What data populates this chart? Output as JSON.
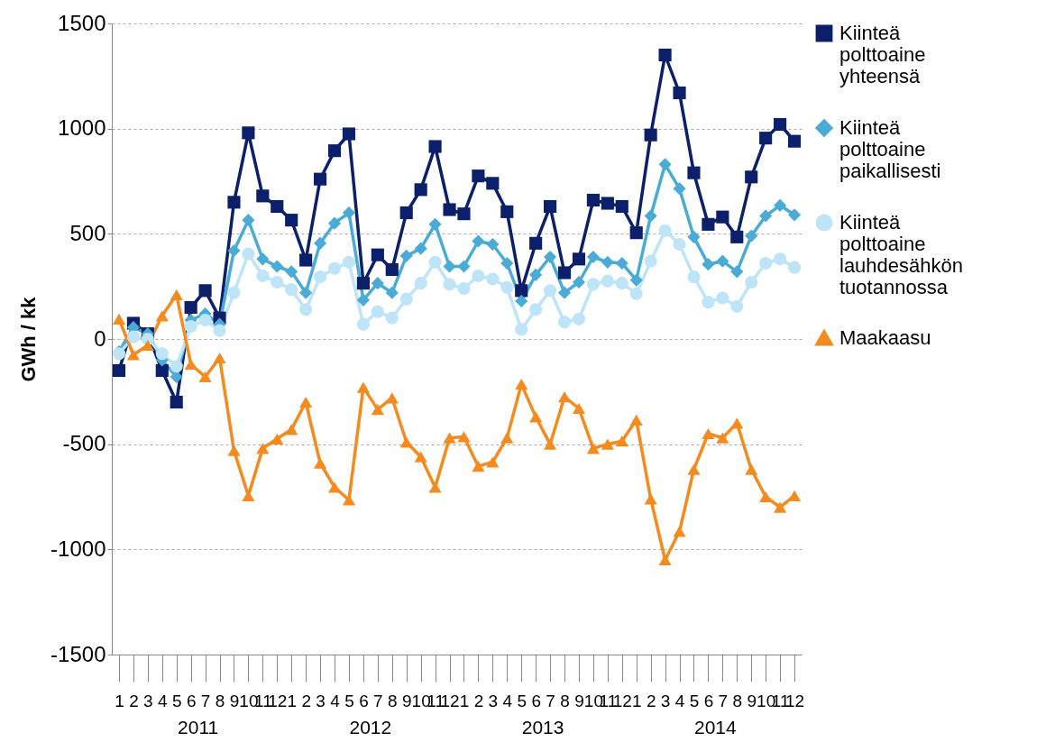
{
  "chart_data": {
    "type": "line",
    "ylabel": "GWh / kk",
    "categories": [
      "1",
      "2",
      "3",
      "4",
      "5",
      "6",
      "7",
      "8",
      "9",
      "10",
      "11",
      "12",
      "1",
      "2",
      "3",
      "4",
      "5",
      "6",
      "7",
      "8",
      "9",
      "10",
      "11",
      "12",
      "1",
      "2",
      "3",
      "4",
      "5",
      "6",
      "7",
      "8",
      "9",
      "10",
      "11",
      "12",
      "1",
      "2",
      "3",
      "4",
      "5",
      "6",
      "7",
      "8",
      "9",
      "10",
      "11",
      "12"
    ],
    "annotations": [
      "2011",
      "2012",
      "2013",
      "2014"
    ],
    "series": [
      {
        "name": "Kiinteä polttoaine yhteensä",
        "color": "#0b1f6b",
        "marker": "square",
        "values": [
          -150,
          75,
          25,
          -150,
          -300,
          150,
          230,
          100,
          650,
          980,
          680,
          630,
          565,
          375,
          760,
          895,
          975,
          265,
          400,
          330,
          600,
          710,
          915,
          615,
          595,
          775,
          740,
          605,
          230,
          455,
          630,
          315,
          380,
          660,
          645,
          630,
          505,
          970,
          1350,
          1170,
          790,
          545,
          580,
          485,
          770,
          955,
          1020,
          940
        ]
      },
      {
        "name": "Kiinteä polttoaine paikallisesti",
        "color": "#4aacd6",
        "marker": "diamond",
        "values": [
          -60,
          55,
          25,
          -100,
          -180,
          90,
          120,
          70,
          420,
          565,
          380,
          345,
          320,
          220,
          455,
          550,
          600,
          185,
          265,
          220,
          395,
          430,
          545,
          345,
          345,
          465,
          450,
          360,
          180,
          305,
          390,
          220,
          270,
          390,
          365,
          360,
          280,
          585,
          830,
          715,
          485,
          355,
          370,
          320,
          490,
          585,
          635,
          590
        ]
      },
      {
        "name": "Kiinteä polttoaine lauhdesähkön tuotannossa",
        "color": "#bde4f7",
        "marker": "circle",
        "values": [
          -70,
          10,
          0,
          -70,
          -130,
          60,
          90,
          40,
          220,
          405,
          300,
          270,
          235,
          140,
          295,
          335,
          365,
          70,
          130,
          100,
          190,
          265,
          365,
          260,
          240,
          300,
          285,
          245,
          45,
          140,
          230,
          80,
          95,
          260,
          275,
          265,
          215,
          370,
          515,
          450,
          295,
          175,
          195,
          155,
          270,
          360,
          380,
          340
        ]
      },
      {
        "name": "Maakaasu",
        "color": "#f58a1f",
        "marker": "triangle",
        "values": [
          95,
          -75,
          -30,
          110,
          210,
          -120,
          -180,
          -90,
          -530,
          -745,
          -520,
          -475,
          -430,
          -300,
          -590,
          -705,
          -765,
          -230,
          -335,
          -280,
          -490,
          -560,
          -705,
          -470,
          -465,
          -605,
          -585,
          -470,
          -215,
          -370,
          -500,
          -275,
          -330,
          -520,
          -500,
          -485,
          -385,
          -760,
          -1050,
          -915,
          -620,
          -450,
          -470,
          -400,
          -620,
          -750,
          -800,
          -745
        ]
      }
    ],
    "ylim": [
      -1500,
      1500
    ],
    "yticks": [
      -1500,
      -1000,
      -500,
      0,
      500,
      1000,
      1500
    ],
    "grid": "y",
    "legend": "right",
    "line_style": "solid"
  }
}
